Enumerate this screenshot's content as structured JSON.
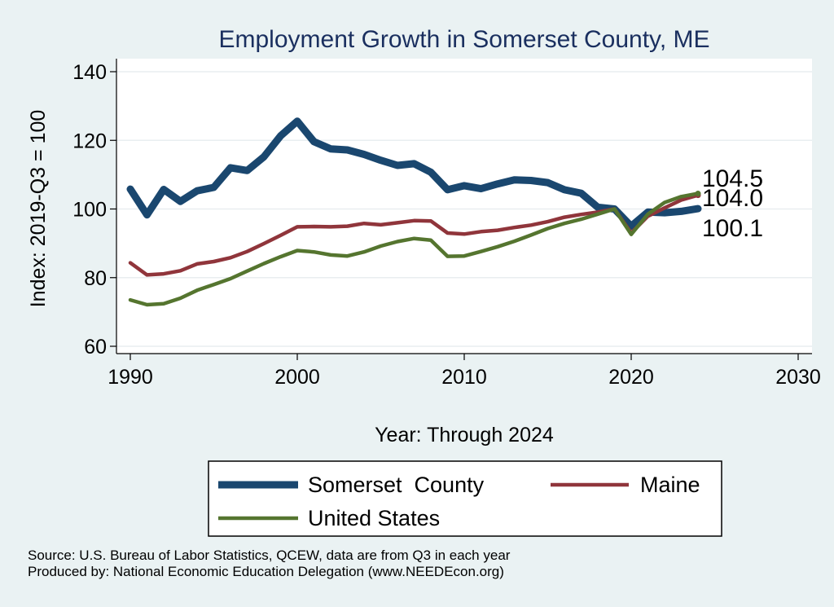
{
  "chart_data": {
    "type": "line",
    "title": "Employment Growth in Somerset County, ME",
    "xlabel": "Year: Through 2024",
    "ylabel": "Index: 2019-Q3 = 100",
    "xlim": [
      1990,
      2030
    ],
    "ylim": [
      60,
      140
    ],
    "x_ticks": [
      "1990",
      "2000",
      "2010",
      "2020",
      "2030"
    ],
    "y_ticks": [
      "60",
      "80",
      "100",
      "120",
      "140"
    ],
    "grid": true,
    "legend_position": "bottom",
    "x": [
      1990,
      1991,
      1992,
      1993,
      1994,
      1995,
      1996,
      1997,
      1998,
      1999,
      2000,
      2001,
      2002,
      2003,
      2004,
      2005,
      2006,
      2007,
      2008,
      2009,
      2010,
      2011,
      2012,
      2013,
      2014,
      2015,
      2016,
      2017,
      2018,
      2019,
      2020,
      2021,
      2022,
      2023,
      2024
    ],
    "series": [
      {
        "name": "Somerset  County",
        "color": "#1a476f",
        "values": [
          105.8,
          98.3,
          105.7,
          102.2,
          105.3,
          106.3,
          112.0,
          111.2,
          115.2,
          121.3,
          125.6,
          119.6,
          117.5,
          117.2,
          115.9,
          114.2,
          112.7,
          113.2,
          110.7,
          105.6,
          106.8,
          105.9,
          107.3,
          108.5,
          108.3,
          107.7,
          105.6,
          104.6,
          100.5,
          100.0,
          95.0,
          99.1,
          98.9,
          99.3,
          100.1
        ]
      },
      {
        "name": "Maine",
        "color": "#90353b",
        "values": [
          84.3,
          80.8,
          81.1,
          82.0,
          84.0,
          84.7,
          85.8,
          87.6,
          89.9,
          92.3,
          94.8,
          94.9,
          94.8,
          95.0,
          95.8,
          95.4,
          96.0,
          96.6,
          96.5,
          93.0,
          92.7,
          93.4,
          93.8,
          94.6,
          95.3,
          96.3,
          97.6,
          98.4,
          99.1,
          100.0,
          93.0,
          97.9,
          100.3,
          102.6,
          104.0
        ]
      },
      {
        "name": "United States",
        "color": "#55752f",
        "values": [
          73.5,
          72.1,
          72.4,
          74.0,
          76.3,
          78.0,
          79.7,
          81.9,
          84.1,
          86.1,
          87.9,
          87.5,
          86.6,
          86.3,
          87.5,
          89.2,
          90.5,
          91.4,
          90.9,
          86.2,
          86.3,
          87.6,
          89.0,
          90.6,
          92.4,
          94.3,
          95.8,
          97.0,
          98.5,
          100.0,
          92.6,
          98.5,
          101.9,
          103.6,
          104.5
        ]
      }
    ],
    "end_labels": [
      "104.5",
      "104.0",
      "100.1"
    ]
  },
  "footer": {
    "source": "Source: U.S. Bureau of Labor Statistics, QCEW, data are from Q3 in each year",
    "producer": "Produced by: National Economic Education Delegation (www.NEEDEcon.org)"
  }
}
